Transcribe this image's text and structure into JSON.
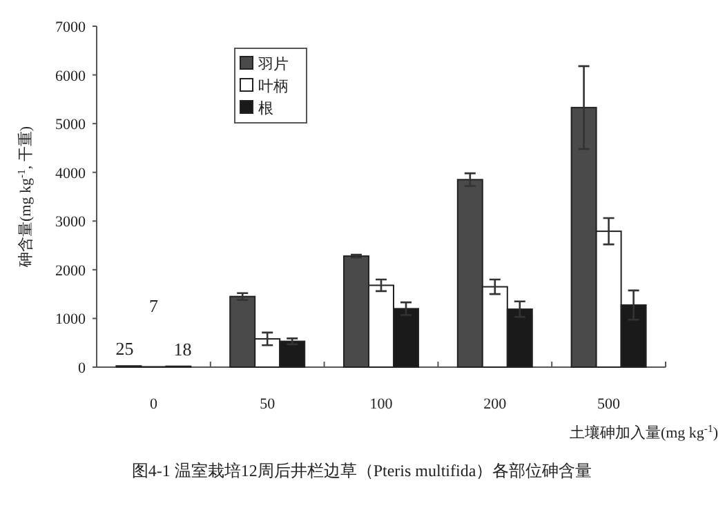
{
  "chart_data": {
    "type": "bar",
    "title": "图4-1 温室栽培12周后井栏边草（Pteris multifida）各部位砷含量",
    "xlabel": "土壤砷加入量(mg kg$^{-1}$)",
    "ylabel": "砷含量(mg kg$^{-1}$, 干重)",
    "categories": [
      "0",
      "50",
      "100",
      "200",
      "500"
    ],
    "series": [
      {
        "name": "羽片",
        "color": "#4a4a4a",
        "values": [
          25,
          1450,
          2280,
          3850,
          5330
        ],
        "errors": [
          null,
          70,
          30,
          130,
          850
        ],
        "value_labels": [
          "25",
          null,
          null,
          null,
          null
        ]
      },
      {
        "name": "叶柄",
        "color": "#ffffff",
        "values": [
          7,
          580,
          1680,
          1650,
          2790
        ],
        "errors": [
          null,
          130,
          120,
          150,
          270
        ],
        "value_labels": [
          "7",
          null,
          null,
          null,
          null
        ]
      },
      {
        "name": "根",
        "color": "#1a1a1a",
        "values": [
          18,
          530,
          1200,
          1190,
          1275
        ],
        "errors": [
          null,
          60,
          130,
          160,
          300
        ],
        "value_labels": [
          "18",
          null,
          null,
          null,
          null
        ]
      }
    ],
    "ylim": [
      0,
      7000
    ],
    "yticks": [
      0,
      1000,
      2000,
      3000,
      4000,
      5000,
      6000,
      7000
    ],
    "grid": false,
    "legend": "top left"
  }
}
